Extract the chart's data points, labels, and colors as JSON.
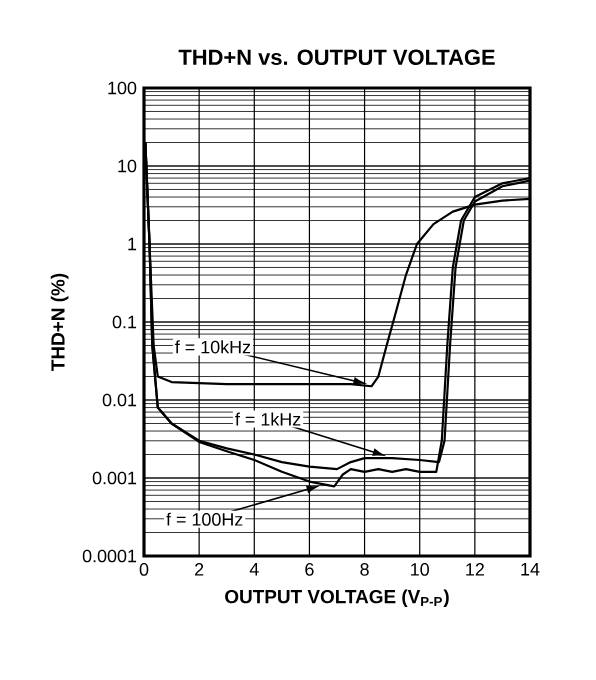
{
  "chart_data": {
    "type": "line",
    "title": "THD+N vs. OUTPUT VOLTAGE",
    "xlabel": "OUTPUT VOLTAGE (V$_{P-P}$)",
    "ylabel": "THD+N (%)",
    "log": "y",
    "grid": true,
    "xlim": [
      0,
      14
    ],
    "xticks": [
      0,
      2,
      4,
      6,
      8,
      10,
      12,
      14
    ],
    "ylim": [
      0.0001,
      100
    ],
    "yticks": [
      0.0001,
      0.001,
      0.01,
      0.1,
      1,
      10,
      100
    ],
    "series": [
      {
        "color": "#000000",
        "x": [
          0.05,
          0.2,
          0.35,
          0.5,
          1,
          3,
          6,
          7.5,
          8.25,
          8.5,
          8.8,
          9.1,
          9.5,
          9.9,
          10.5,
          11.2,
          12,
          13,
          14
        ],
        "values": [
          20,
          1,
          0.05,
          0.02,
          0.017,
          0.016,
          0.016,
          0.016,
          0.015,
          0.02,
          0.05,
          0.12,
          0.4,
          1,
          1.8,
          2.6,
          3.2,
          3.6,
          3.8
        ]
      },
      {
        "color": "#000000",
        "x": [
          0.05,
          0.2,
          0.3,
          0.5,
          1,
          2,
          3,
          4,
          5,
          6,
          7,
          7.5,
          8,
          9,
          10,
          10.7,
          10.9,
          11.1,
          11.3,
          11.6,
          12,
          13,
          14
        ],
        "values": [
          20,
          1,
          0.05,
          0.008,
          0.005,
          0.003,
          0.0024,
          0.002,
          0.0016,
          0.0014,
          0.0013,
          0.0016,
          0.0018,
          0.0018,
          0.0017,
          0.0016,
          0.003,
          0.05,
          0.5,
          2,
          3.5,
          5.5,
          6.5
        ]
      },
      {
        "color": "#000000",
        "x": [
          0.05,
          0.2,
          0.3,
          0.5,
          1,
          2,
          3,
          4,
          5,
          6,
          6.9,
          7.2,
          7.5,
          8,
          8.5,
          9,
          9.5,
          10,
          10.6,
          10.8,
          11,
          11.2,
          11.5,
          12,
          13,
          14
        ],
        "values": [
          20,
          1,
          0.05,
          0.008,
          0.005,
          0.0029,
          0.0022,
          0.0017,
          0.0012,
          0.0009,
          0.00078,
          0.0011,
          0.0013,
          0.0012,
          0.0013,
          0.0012,
          0.0013,
          0.0012,
          0.0012,
          0.003,
          0.05,
          0.5,
          2,
          4,
          6,
          7
        ]
      }
    ],
    "annotations": [
      {
        "text": "f = 10kHz",
        "x": 8.1,
        "y": 0.016
      },
      {
        "text": "f = 1kHz",
        "x": 8.8,
        "y": 0.0019
      },
      {
        "text": "f = 100Hz",
        "x": 6.4,
        "y": 0.0008
      }
    ]
  }
}
